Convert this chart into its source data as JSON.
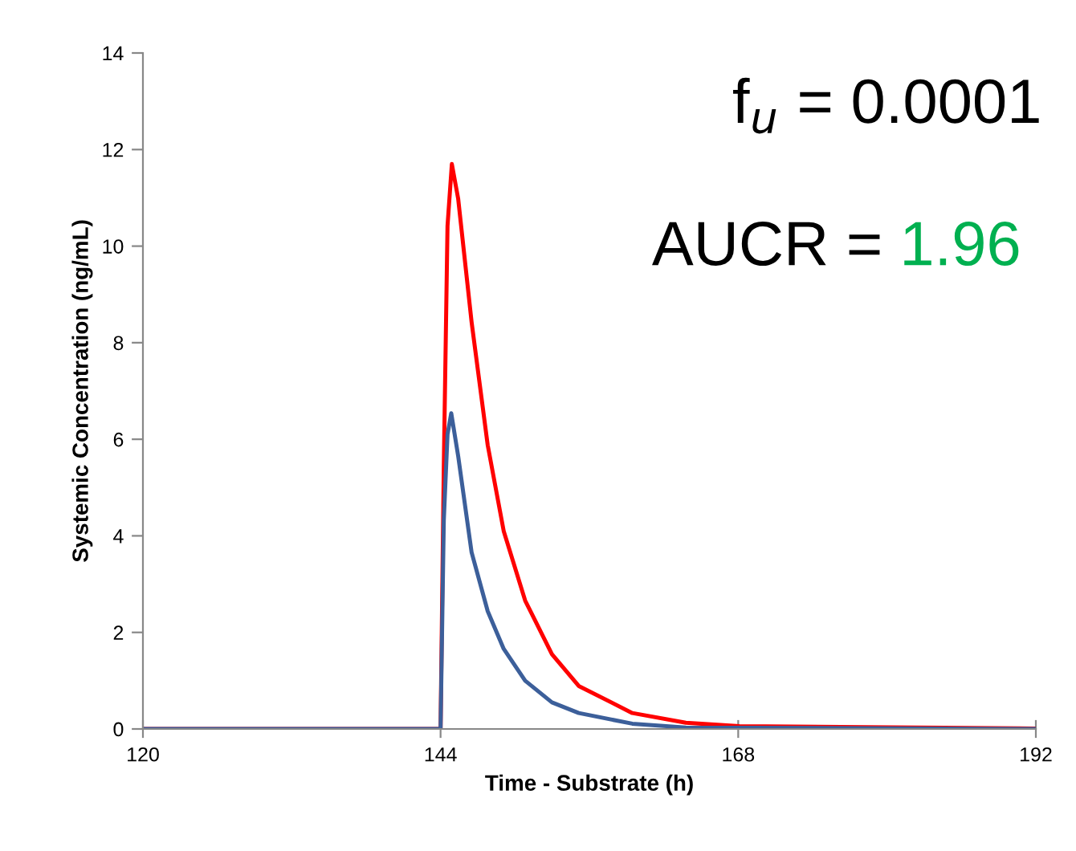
{
  "chart_data": {
    "type": "line",
    "xlabel": "Time - Substrate (h)",
    "ylabel": "Systemic Concentration (ng/mL)",
    "xlim": [
      120,
      192
    ],
    "xticks": [
      120,
      144,
      168,
      192
    ],
    "ylim": [
      0,
      14
    ],
    "yticks": [
      0,
      2,
      4,
      6,
      8,
      10,
      12,
      14
    ],
    "grid": false,
    "legend": false,
    "marker": "none",
    "line_style": "solid",
    "series": [
      {
        "color": "#ff0000",
        "x": [
          120,
          144.0,
          144.26,
          144.56,
          144.91,
          145.42,
          146.5,
          147.8,
          149.09,
          150.82,
          152.98,
          155.14,
          159.46,
          163.78,
          168.09,
          192
        ],
        "values": [
          0,
          0,
          5.43,
          10.42,
          11.7,
          10.98,
          8.43,
          5.88,
          4.1,
          2.66,
          1.55,
          0.89,
          0.33,
          0.13,
          0.06,
          0.01
        ]
      },
      {
        "color": "#3c5f9a",
        "x": [
          120,
          144.0,
          144.26,
          144.56,
          144.86,
          145.42,
          146.5,
          147.8,
          149.09,
          150.82,
          152.98,
          155.14,
          159.46,
          163.78,
          192
        ],
        "values": [
          0,
          0,
          4.32,
          6.1,
          6.54,
          5.65,
          3.66,
          2.44,
          1.66,
          1.0,
          0.55,
          0.33,
          0.11,
          0.03,
          0
        ]
      }
    ],
    "annotations": [
      "f$_{u}$ = 0.0001",
      "AUCR = 1.96"
    ]
  }
}
